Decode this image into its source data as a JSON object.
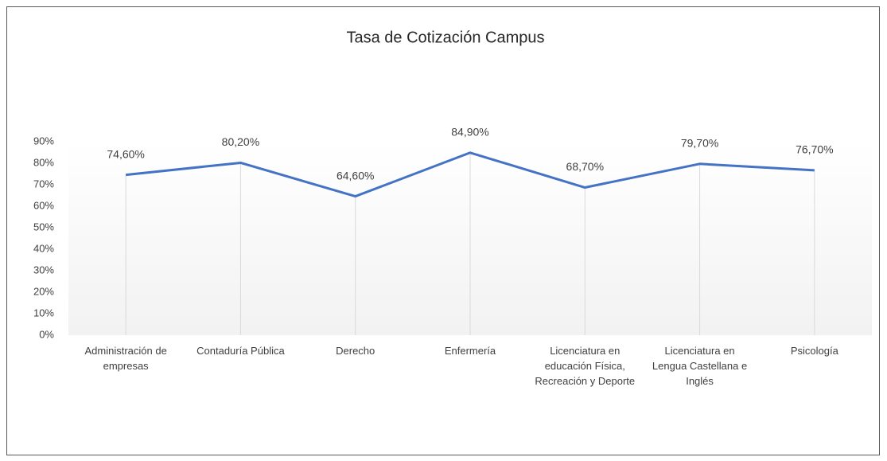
{
  "chart_data": {
    "type": "line",
    "title": "Tasa de Cotización Campus",
    "categories": [
      "Administración de empresas",
      "Contaduría Pública",
      "Derecho",
      "Enfermería",
      "Licenciatura en educación Física, Recreación y Deporte",
      "Licenciatura en Lengua Castellana e Inglés",
      "Psicología"
    ],
    "values": [
      74.6,
      80.2,
      64.6,
      84.9,
      68.7,
      79.7,
      76.7
    ],
    "value_labels": [
      "74,60%",
      "80,20%",
      "64,60%",
      "84,90%",
      "68,70%",
      "79,70%",
      "76,70%"
    ],
    "color": "#4472c4",
    "ylim": [
      0,
      90
    ],
    "yticks": [
      {
        "value": 0,
        "label": "0%"
      },
      {
        "value": 10,
        "label": "10%"
      },
      {
        "value": 20,
        "label": "20%"
      },
      {
        "value": 30,
        "label": "30%"
      },
      {
        "value": 40,
        "label": "40%"
      },
      {
        "value": 50,
        "label": "50%"
      },
      {
        "value": 60,
        "label": "60%"
      },
      {
        "value": 70,
        "label": "70%"
      },
      {
        "value": 80,
        "label": "80%"
      },
      {
        "value": 90,
        "label": "90%"
      }
    ]
  }
}
